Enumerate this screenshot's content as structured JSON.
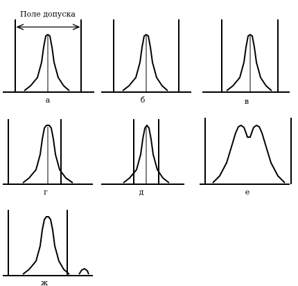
{
  "title": "Поле допуска",
  "panels": [
    {
      "id": "a",
      "label": "а",
      "shape": "peak"
    },
    {
      "id": "b",
      "label": "б",
      "shape": "peak"
    },
    {
      "id": "v",
      "label": "в",
      "shape": "peak"
    },
    {
      "id": "g",
      "label": "г",
      "shape": "peak"
    },
    {
      "id": "d",
      "label": "д",
      "shape": "peak"
    },
    {
      "id": "e",
      "label": "е",
      "shape": "double"
    },
    {
      "id": "zh",
      "label": "ж",
      "shape": "outlier"
    }
  ]
}
